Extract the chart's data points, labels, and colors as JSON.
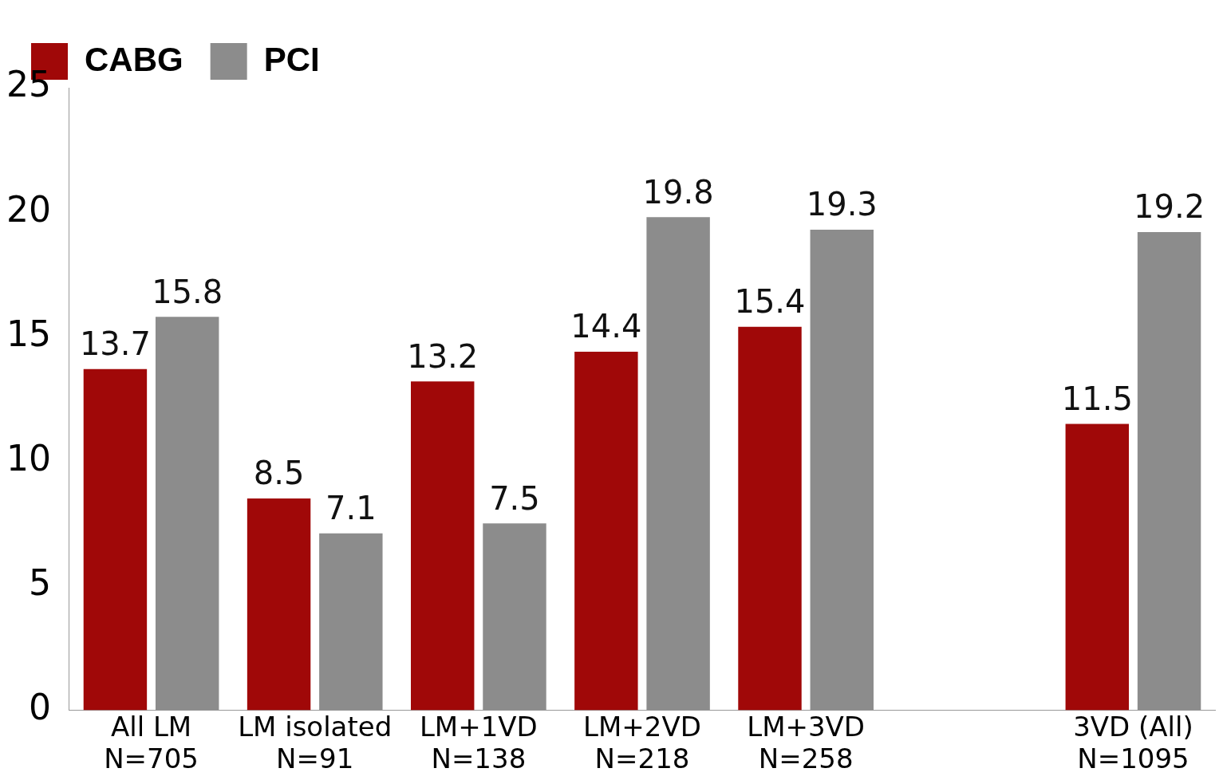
{
  "chart_data": {
    "type": "bar",
    "categories": [
      "All LM\nN=705",
      "LM isolated\nN=91",
      "LM+1VD\nN=138",
      "LM+2VD\nN=218",
      "LM+3VD\nN=258",
      null,
      "3VD (All)\nN=1095"
    ],
    "series": [
      {
        "name": "CABG",
        "color": "#a00808",
        "values": [
          13.7,
          8.5,
          13.2,
          14.4,
          15.4,
          null,
          11.5
        ]
      },
      {
        "name": "PCI",
        "color": "#8c8c8c",
        "values": [
          15.8,
          7.1,
          7.5,
          19.8,
          19.3,
          null,
          19.2
        ]
      }
    ],
    "ylim": [
      0,
      25
    ],
    "yticks": [
      0,
      5,
      10,
      15,
      20,
      25
    ],
    "grid": false,
    "legend": "top left",
    "data_labels": true
  }
}
